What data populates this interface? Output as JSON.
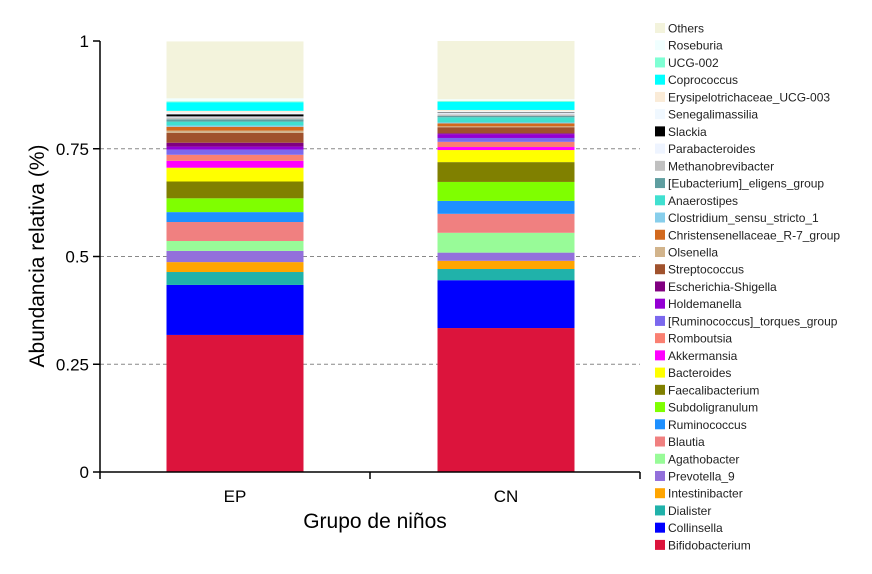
{
  "chart_data": {
    "type": "bar",
    "stacked": true,
    "xlabel": "Grupo de niños",
    "ylabel": "Abundancia relativa (%)",
    "ylim": [
      0,
      1
    ],
    "yticks": [
      "0",
      "0.25",
      "0.5",
      "0.75",
      "1"
    ],
    "ytick_values": [
      0,
      0.25,
      0.5,
      0.75,
      1
    ],
    "grid": "horizontal dashed",
    "legend_position": "right",
    "categories": [
      "EP",
      "CN"
    ],
    "series": [
      {
        "name": "Bifidobacterium",
        "color": "#DC143C",
        "values": [
          0.318,
          0.334
        ]
      },
      {
        "name": "Collinsella",
        "color": "#0000FF",
        "values": [
          0.116,
          0.111
        ]
      },
      {
        "name": "Dialister",
        "color": "#20B2AA",
        "values": [
          0.03,
          0.026
        ]
      },
      {
        "name": "Intestinibacter",
        "color": "#FFA500",
        "values": [
          0.023,
          0.019
        ]
      },
      {
        "name": "Prevotella_9",
        "color": "#9370DB",
        "values": [
          0.026,
          0.019
        ]
      },
      {
        "name": "Agathobacter",
        "color": "#98FB98",
        "values": [
          0.023,
          0.046
        ]
      },
      {
        "name": "Blautia",
        "color": "#F08080",
        "values": [
          0.044,
          0.044
        ]
      },
      {
        "name": "Ruminococcus",
        "color": "#1E90FF",
        "values": [
          0.023,
          0.03
        ]
      },
      {
        "name": "Subdoligranulum",
        "color": "#7FFF00",
        "values": [
          0.032,
          0.044
        ]
      },
      {
        "name": "Faecalibacterium",
        "color": "#808000",
        "values": [
          0.039,
          0.046
        ]
      },
      {
        "name": "Bacteroides",
        "color": "#FFFF00",
        "values": [
          0.032,
          0.028
        ]
      },
      {
        "name": "Akkermansia",
        "color": "#FF00FF",
        "values": [
          0.016,
          0.007
        ]
      },
      {
        "name": "Romboutsia",
        "color": "#FA8072",
        "values": [
          0.014,
          0.012
        ]
      },
      {
        "name": "[Ruminococcus]_torques_group",
        "color": "#7B68EE",
        "values": [
          0.012,
          0.009
        ]
      },
      {
        "name": "Holdemanella",
        "color": "#9400D3",
        "values": [
          0.007,
          0.009
        ]
      },
      {
        "name": "Escherichia-Shigella",
        "color": "#800080",
        "values": [
          0.009,
          0.002
        ]
      },
      {
        "name": "Streptococcus",
        "color": "#A0522D",
        "values": [
          0.023,
          0.014
        ]
      },
      {
        "name": "Olsenella",
        "color": "#D2B48C",
        "values": [
          0.005,
          0.002
        ]
      },
      {
        "name": "Christensenellaceae_R-7_group",
        "color": "#D2691E",
        "values": [
          0.009,
          0.007
        ]
      },
      {
        "name": "Clostridium_sensu_stricto_1",
        "color": "#87CEEB",
        "values": [
          0.003,
          0.002
        ]
      },
      {
        "name": "Anaerostipes",
        "color": "#40E0D0",
        "values": [
          0.009,
          0.012
        ]
      },
      {
        "name": "[Eubacterium]_eligens_group",
        "color": "#5F9EA0",
        "values": [
          0.005,
          0.003
        ]
      },
      {
        "name": "Methanobrevibacter",
        "color": "#C0C0C0",
        "values": [
          0.005,
          0.004
        ]
      },
      {
        "name": "Parabacteroides",
        "color": "#EEF4FF",
        "values": [
          0.002,
          0.003
        ]
      },
      {
        "name": "Slackia",
        "color": "#000000",
        "values": [
          0.005,
          0.001
        ]
      },
      {
        "name": "Senegalimassilia",
        "color": "#F0F8FF",
        "values": [
          0.004,
          0.003
        ]
      },
      {
        "name": "Erysipelotrichaceae_UCG-003",
        "color": "#FAEBD7",
        "values": [
          0.004,
          0.003
        ]
      },
      {
        "name": "Coprococcus",
        "color": "#00FFFF",
        "values": [
          0.02,
          0.019
        ]
      },
      {
        "name": "UCG-002",
        "color": "#7FFFD4",
        "values": [
          0.002,
          0.002
        ]
      },
      {
        "name": "Roseburia",
        "color": "#F0FFFF",
        "values": [
          0.007,
          0.004
        ]
      },
      {
        "name": "Others",
        "color": "#F3F3DC",
        "values": [
          0.132,
          0.135
        ]
      }
    ]
  }
}
